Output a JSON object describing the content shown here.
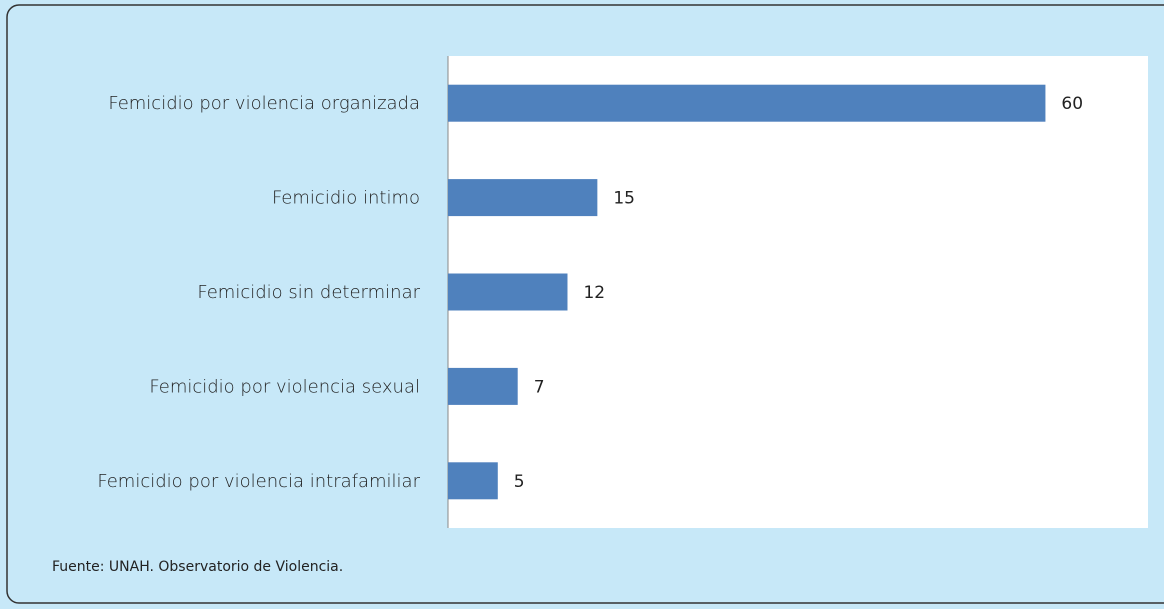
{
  "chart_data": {
    "type": "bar",
    "orientation": "horizontal",
    "categories": [
      "Femicidio por violencia organizada",
      "Femicidio intimo",
      "Femicidio sin determinar",
      "Femicidio por violencia sexual",
      "Femicidio por violencia intrafamiliar"
    ],
    "values": [
      60,
      15,
      12,
      7,
      5
    ],
    "color": "#4f81bd",
    "xlim": [
      0,
      70
    ],
    "source": "Fuente: UNAH. Observatorio de Violencia."
  }
}
